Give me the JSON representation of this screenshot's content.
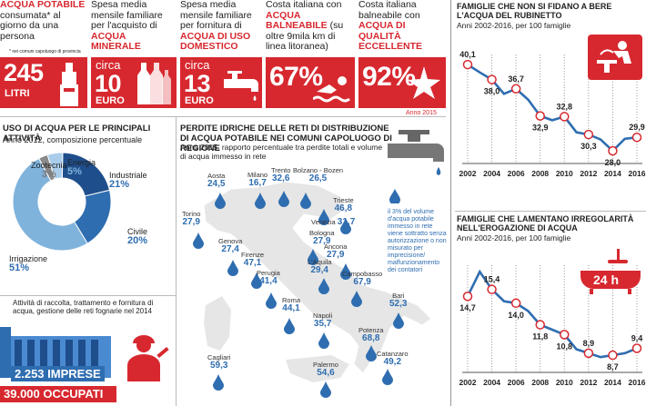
{
  "stats": [
    {
      "label_red": "ACQUA POTABILE",
      "label": "consumata* al giorno da una persona",
      "value": "245",
      "unit": "LITRI",
      "note": "* nei comuni capoluogo di provincia"
    },
    {
      "label": "Spesa media mensile familiare per l'acquisto di",
      "label_red": "ACQUA MINERALE",
      "prefix": "circa",
      "value": "10",
      "unit": "EURO"
    },
    {
      "label": "Spesa media mensile familiare per fornitura di",
      "label_red": "ACQUA DI USO DOMESTICO",
      "prefix": "circa",
      "value": "13",
      "unit": "EURO"
    },
    {
      "label": "Costa italiana con",
      "label_red": "ACQUA BALNEABILE",
      "label2": "(su oltre 9mila km di linea litoranea)",
      "value": "67%"
    },
    {
      "label": "Costa italiana balneabile con",
      "label_red": "ACQUA DI QUALITÀ ECCELLENTE",
      "value": "92%",
      "note": "Anno 2015"
    }
  ],
  "usage": {
    "title": "USO DI ACQUA PER LE PRINCIPALI ATTIVITÀ",
    "subtitle": "Anno 2012, composizione percentuale",
    "slices": [
      {
        "name": "Industriale",
        "value": "21%",
        "pct": 21,
        "color": "#1f4e8c"
      },
      {
        "name": "Civile",
        "value": "20%",
        "pct": 20,
        "color": "#2e6db0"
      },
      {
        "name": "Irrigazione",
        "value": "51%",
        "pct": 51,
        "color": "#7fb3dc"
      },
      {
        "name": "Zootecnia",
        "value": "3%",
        "pct": 3,
        "color": "#8a8a8a"
      },
      {
        "name": "Energia",
        "value": "5%",
        "pct": 5,
        "color": "#a9cdeb"
      }
    ]
  },
  "sewer": {
    "text": "Attività di raccolta, trattamento e fornitura di acqua, gestione delle reti fognarie nel 2014",
    "imprese": "2.253 IMPRESE",
    "occupati": "39.000 OCCUPATI"
  },
  "losses": {
    "title": "PERDITE IDRICHE DELLE RETI DI DISTRIBUZIONE DI ACQUA POTABILE NEI COMUNI CAPOLUOGO DI REGIONE",
    "subtitle": "Anno 2015, rapporto percentuale tra perdite totali e volume di acqua immesso in rete",
    "note": "il 3% del volume d'acqua potabile immesso in rete viene sottratto senza autorizzazione o non misurato per imprecisione/ malfunzionamento dei contatori",
    "cities": [
      {
        "name": "Aosta",
        "value": "24,5"
      },
      {
        "name": "Milano",
        "value": "16,7"
      },
      {
        "name": "Trento",
        "value": "32,6"
      },
      {
        "name": "Bolzano - Bozen",
        "value": "26,5"
      },
      {
        "name": "Trieste",
        "value": "46,8"
      },
      {
        "name": "Torino",
        "value": "27,9"
      },
      {
        "name": "Venezia",
        "value": "31,7"
      },
      {
        "name": "Bologna",
        "value": "27,9"
      },
      {
        "name": "Genova",
        "value": "27,4"
      },
      {
        "name": "Ancona",
        "value": "27,9"
      },
      {
        "name": "Firenze",
        "value": "47,1"
      },
      {
        "name": "L'Aquila",
        "value": "29,4"
      },
      {
        "name": "Perugia",
        "value": "41,4"
      },
      {
        "name": "Campobasso",
        "value": "67,9"
      },
      {
        "name": "Roma",
        "value": "44,1"
      },
      {
        "name": "Bari",
        "value": "52,3"
      },
      {
        "name": "Napoli",
        "value": "35,7"
      },
      {
        "name": "Potenza",
        "value": "68,8"
      },
      {
        "name": "Cagliari",
        "value": "59,3"
      },
      {
        "name": "Palermo",
        "value": "54,6"
      },
      {
        "name": "Catanzaro",
        "value": "49,2"
      }
    ]
  },
  "icons": [
    "bottle-icon",
    "faucet-icon",
    "swimmer-icon",
    "starfish-icon",
    "drinking-fountain-icon",
    "bathtub-icon",
    "worker-icon",
    "water-drop-icon"
  ],
  "colors": {
    "accent": "#d7282f",
    "line": "#2e6db0"
  },
  "badge_24h": "24 h",
  "chart_data": [
    {
      "type": "line",
      "title": "FAMIGLIE CHE NON SI FIDANO A BERE L'ACQUA DEL RUBINETTO",
      "subtitle": "Anni 2002-2016, per 100 famiglie",
      "x": [
        2002,
        2003,
        2004,
        2005,
        2006,
        2007,
        2008,
        2009,
        2010,
        2011,
        2012,
        2013,
        2014,
        2015,
        2016
      ],
      "xticks": [
        "2002",
        "2004",
        "2006",
        "2008",
        "2010",
        "2012",
        "2014",
        "2016"
      ],
      "y": [
        40.1,
        39.0,
        38.0,
        36.0,
        36.7,
        35.2,
        32.9,
        32.3,
        32.8,
        30.6,
        30.3,
        29.6,
        28.0,
        29.7,
        29.9
      ],
      "labels": {
        "2002": "40,1",
        "2004": "38,0",
        "2006": "36,7",
        "2008": "32,9",
        "2010": "32,8",
        "2012": "30,3",
        "2014": "28,0",
        "2016": "29,9"
      },
      "ylim": [
        27,
        41
      ]
    },
    {
      "type": "line",
      "title": "FAMIGLIE CHE LAMENTANO IRREGOLARITÀ NELL'EROGAZIONE DI ACQUA",
      "subtitle": "Anni 2002-2016, per 100 famiglie",
      "x": [
        2002,
        2003,
        2004,
        2005,
        2006,
        2007,
        2008,
        2009,
        2010,
        2011,
        2012,
        2013,
        2014,
        2015,
        2016
      ],
      "xticks": [
        "2002",
        "2004",
        "2006",
        "2008",
        "2010",
        "2012",
        "2014",
        "2016"
      ],
      "y": [
        14.7,
        17.2,
        15.4,
        14.2,
        14.0,
        13.2,
        11.8,
        11.3,
        10.8,
        9.3,
        8.9,
        8.5,
        8.7,
        8.9,
        9.4
      ],
      "labels": {
        "2002": "14,7",
        "2004": "15,4",
        "2006": "14,0",
        "2008": "11,8",
        "2010": "10,8",
        "2012": "8,9",
        "2014": "8,7",
        "2016": "9,4"
      },
      "ylim": [
        7.5,
        17.5
      ]
    }
  ]
}
